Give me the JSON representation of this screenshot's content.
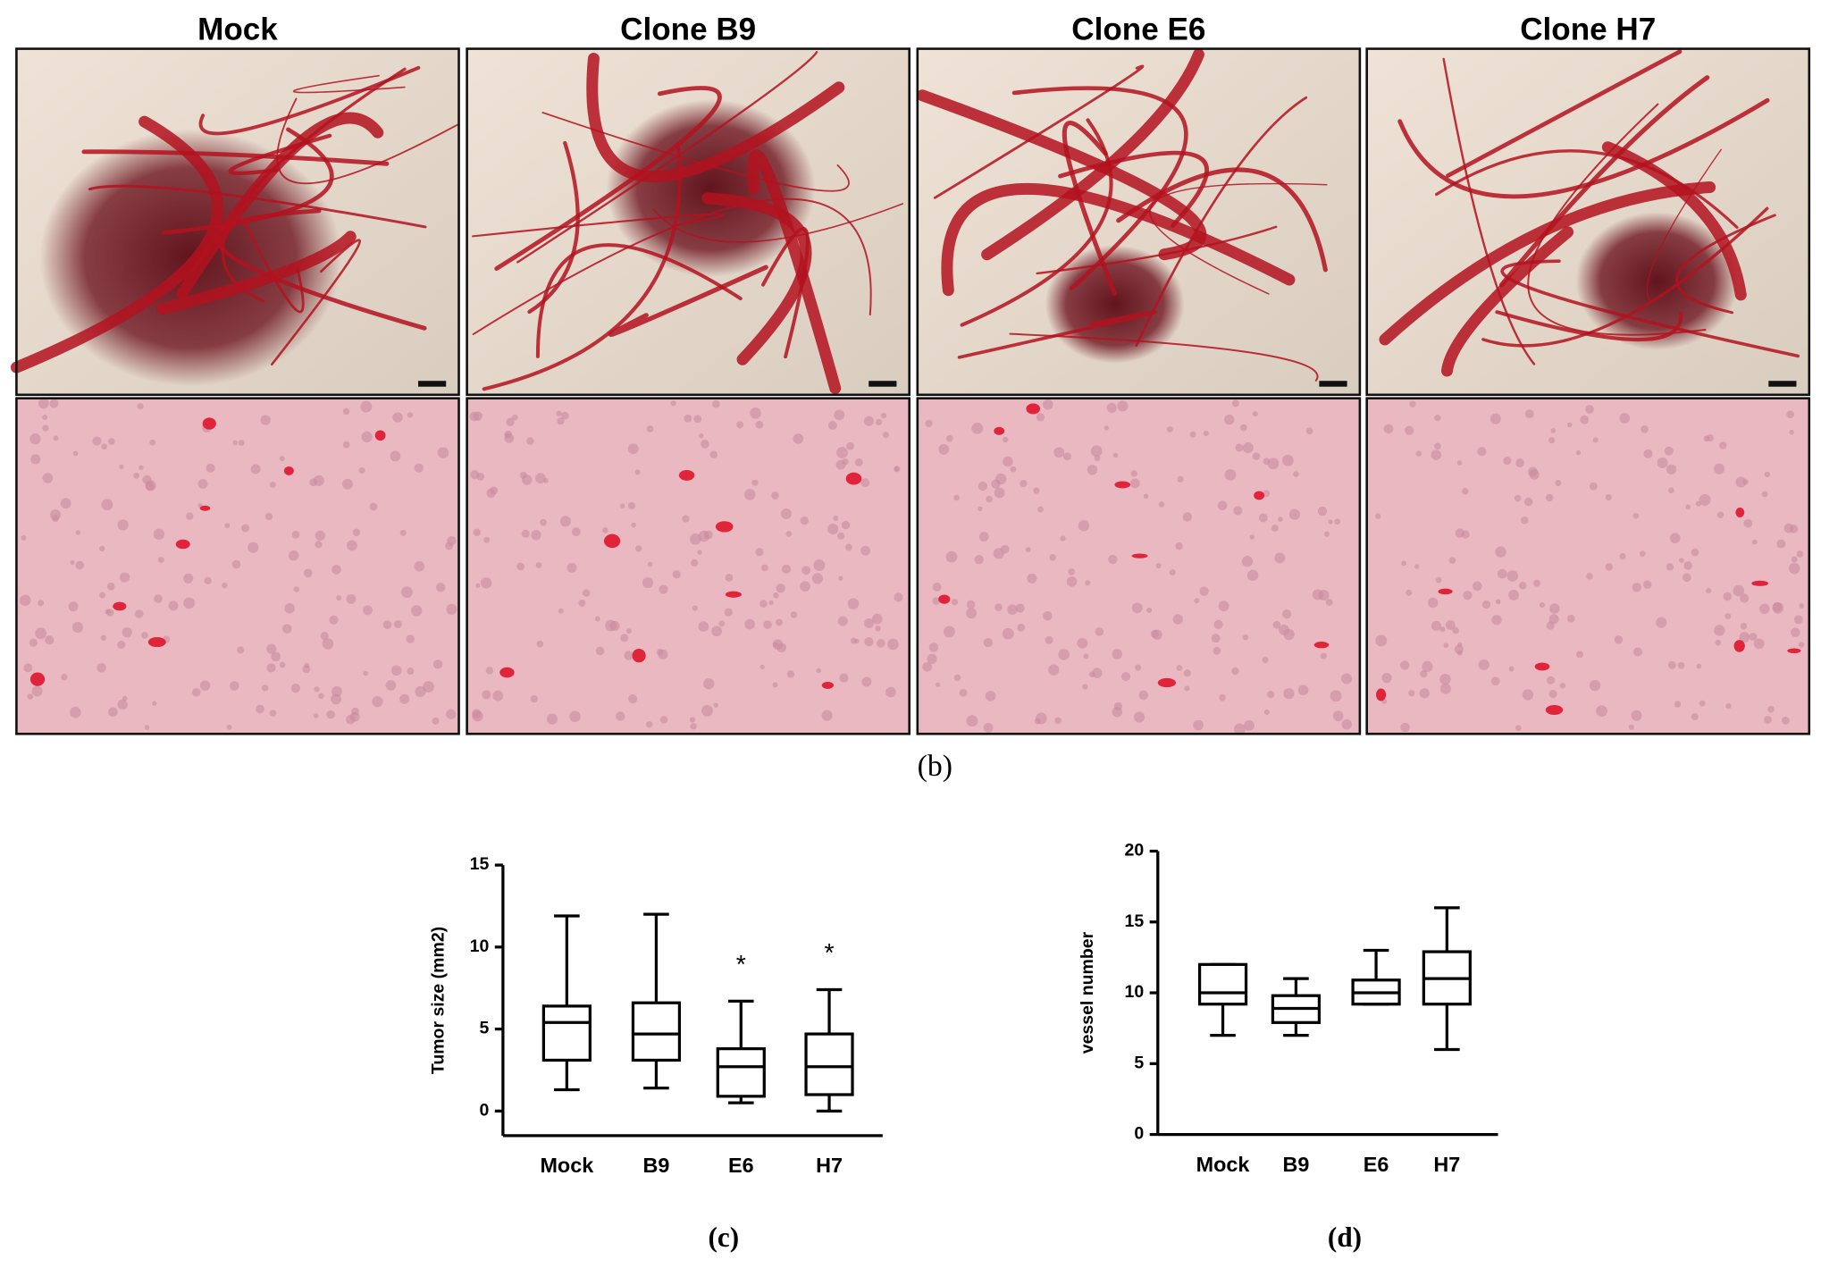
{
  "panels": {
    "titles": [
      "Mock",
      "Clone B9",
      "Clone E6",
      "Clone H7"
    ],
    "label": "(b)"
  },
  "chart_data": [
    {
      "type": "box",
      "label": "(c)",
      "y_label": "Tumor size (mm2)",
      "categories": [
        "Mock",
        "B9",
        "E6",
        "H7"
      ],
      "min": [
        1.3,
        1.4,
        0.5,
        0
      ],
      "q1": [
        3.1,
        3.1,
        0.9,
        1.0
      ],
      "median": [
        5.4,
        4.7,
        2.7,
        2.7
      ],
      "q3": [
        6.4,
        6.6,
        3.8,
        4.7
      ],
      "max": [
        11.9,
        12.0,
        6.7,
        7.4
      ],
      "annotations": [
        null,
        null,
        "*",
        "*"
      ],
      "color": "#000000",
      "ylim": [
        -1.5,
        15
      ],
      "yticks": [
        0,
        5,
        10,
        15
      ]
    },
    {
      "type": "box",
      "label": "(d)",
      "y_label": "vessel number",
      "categories": [
        "Mock",
        "B9",
        "E6",
        "H7"
      ],
      "min": [
        7,
        7,
        9.2,
        6
      ],
      "q1": [
        9.2,
        7.9,
        9.2,
        9.2
      ],
      "median": [
        10,
        8.9,
        10,
        11
      ],
      "q3": [
        12,
        9.8,
        10.9,
        12.9
      ],
      "max": [
        12,
        11,
        13,
        16
      ],
      "annotations": [
        null,
        null,
        null,
        null
      ],
      "color": "#000000",
      "ylim": [
        0,
        20
      ],
      "yticks": [
        0,
        5,
        10,
        15,
        20
      ]
    }
  ]
}
